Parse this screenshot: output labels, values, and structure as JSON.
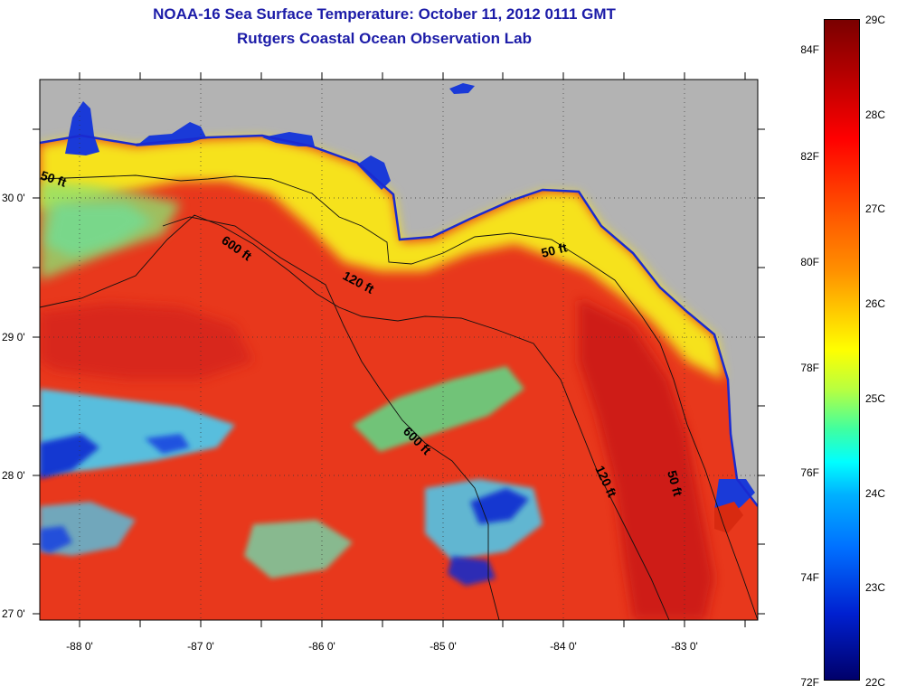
{
  "title": {
    "line1": "NOAA-16 Sea Surface Temperature:  October 11, 2012 0111 GMT",
    "line2": "Rutgers Coastal Ocean Observation Lab"
  },
  "map": {
    "lat_labels": [
      "30 0'",
      "29 0'",
      "28 0'",
      "27 0'"
    ],
    "lon_labels": [
      "-88 0'",
      "-87 0'",
      "-86 0'",
      "-85 0'",
      "-84 0'",
      "-83 0'"
    ],
    "contour_labels": [
      "50 ft",
      "600 ft",
      "120 ft",
      "50 ft",
      "600 ft",
      "120 ft",
      "50 ft"
    ],
    "colors": {
      "land": "#b3b3b3",
      "warm": "#e8301a",
      "hot": "#c81212",
      "nearshore": "#ffee20",
      "cool": "#3fd6ff",
      "cold": "#0a2ad0"
    }
  },
  "colorbar": {
    "fahrenheit": [
      "84F",
      "82F",
      "80F",
      "78F",
      "76F",
      "74F",
      "72F"
    ],
    "celsius": [
      "29C",
      "28C",
      "27C",
      "26C",
      "25C",
      "24C",
      "23C",
      "22C"
    ]
  }
}
